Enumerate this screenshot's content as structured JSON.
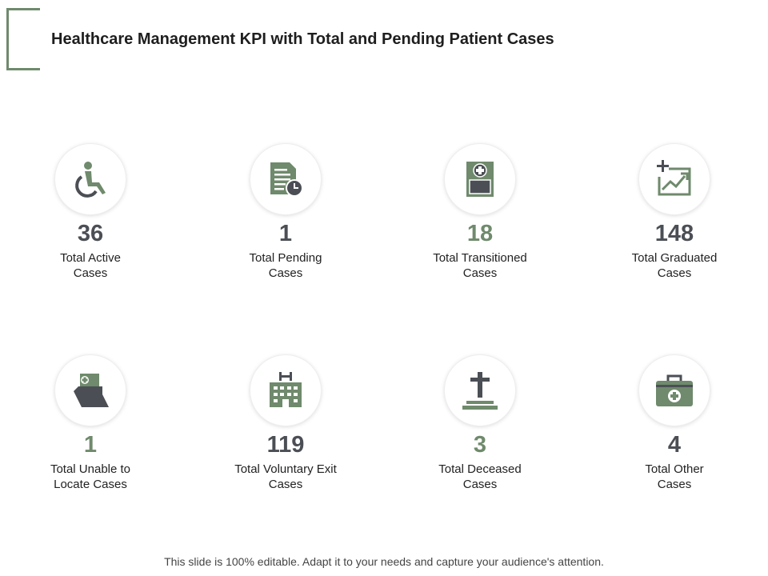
{
  "title": "Healthcare Management KPI with Total and Pending Patient Cases",
  "colors": {
    "green": "#6f8a6c",
    "gray": "#4b4f55"
  },
  "kpis": [
    {
      "value": "36",
      "label1": "Total Active",
      "label2": "Cases",
      "icon": "wheelchair-icon"
    },
    {
      "value": "1",
      "label1": "Total Pending",
      "label2": "Cases",
      "icon": "document-clock-icon"
    },
    {
      "value": "18",
      "label1": "Total Transitioned",
      "label2": "Cases",
      "icon": "medical-card-icon"
    },
    {
      "value": "148",
      "label1": "Total Graduated",
      "label2": "Cases",
      "icon": "growth-chart-icon"
    },
    {
      "value": "1",
      "label1": "Total Unable to",
      "label2": "Locate Cases",
      "icon": "medical-folder-icon"
    },
    {
      "value": "119",
      "label1": "Total Voluntary Exit",
      "label2": "Cases",
      "icon": "hospital-icon"
    },
    {
      "value": "3",
      "label1": "Total Deceased",
      "label2": "Cases",
      "icon": "grave-cross-icon"
    },
    {
      "value": "4",
      "label1": "Total Other",
      "label2": "Cases",
      "icon": "first-aid-kit-icon"
    }
  ],
  "footer": "This slide is 100% editable. Adapt it to your needs and capture your audience's attention."
}
